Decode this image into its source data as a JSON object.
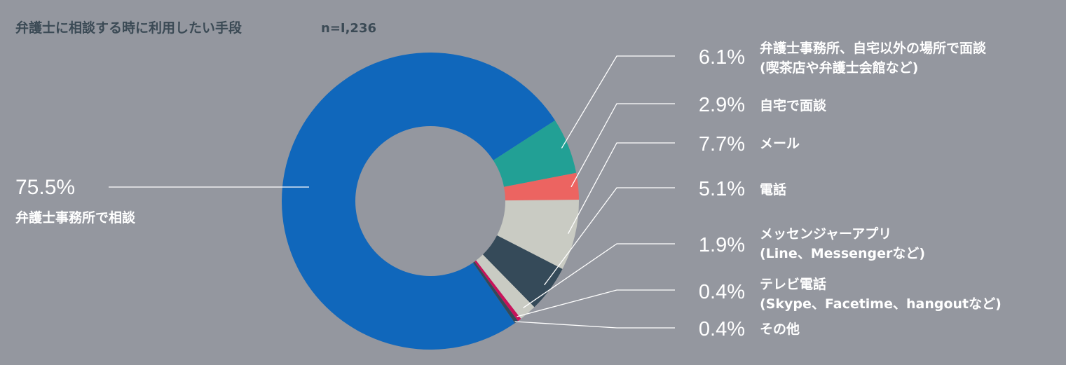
{
  "chart_data": {
    "type": "pie",
    "title": "弁護士に相談する時に利用したい手段",
    "note": "n=I,236",
    "slices": [
      {
        "label_lines": [
          "弁護士事務所で相談"
        ],
        "value": 75.5,
        "value_label": "75.5%",
        "color": "#1067bb"
      },
      {
        "label_lines": [
          "弁護士事務所、自宅以外の場所で面談",
          "(喫茶店や弁護士会館など)"
        ],
        "value": 6.1,
        "value_label": "6.1%",
        "color": "#22a095"
      },
      {
        "label_lines": [
          "自宅で面談"
        ],
        "value": 2.9,
        "value_label": "2.9%",
        "color": "#ec6461"
      },
      {
        "label_lines": [
          "メール"
        ],
        "value": 7.7,
        "value_label": "7.7%",
        "color": "#c9cbc3"
      },
      {
        "label_lines": [
          "電話"
        ],
        "value": 5.1,
        "value_label": "5.1%",
        "color": "#354a59"
      },
      {
        "label_lines": [
          "メッセンジャーアプリ",
          "(Line、Messengerなど)"
        ],
        "value": 1.9,
        "value_label": "1.9%",
        "color": "#c9cbc3"
      },
      {
        "label_lines": [
          "テレビ電話",
          "(Skype、Facetime、hangoutなど)"
        ],
        "value": 0.4,
        "value_label": "0.4%",
        "color": "#c8125a"
      },
      {
        "label_lines": [
          "その他"
        ],
        "value": 0.4,
        "value_label": "0.4%",
        "color": "#354a59"
      }
    ]
  }
}
